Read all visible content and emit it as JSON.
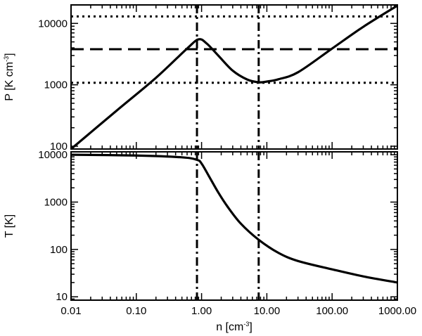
{
  "chart_data": [
    {
      "type": "line",
      "panel": "top",
      "xscale": "log",
      "yscale": "log",
      "xlim": [
        0.01,
        1000
      ],
      "ylim": [
        90,
        20000
      ],
      "yticks": [
        100,
        1000,
        10000
      ],
      "ytick_labels": [
        "100",
        "1000",
        "10000"
      ],
      "ylabel": {
        "prefix": "P [K cm",
        "sup": "-3",
        "suffix": "]"
      },
      "series": [
        {
          "style": "solid",
          "x": [
            0.01,
            0.05,
            0.2,
            0.6,
            0.9,
            1.2,
            1.8,
            3.0,
            5.0,
            7.5,
            10,
            15,
            30,
            100,
            300,
            1000
          ],
          "y": [
            90,
            380,
            1300,
            3900,
            5500,
            4700,
            3000,
            1700,
            1220,
            1100,
            1130,
            1230,
            1600,
            3900,
            8800,
            19500
          ]
        }
      ],
      "hlines": [
        {
          "y": 13000,
          "style": "dotted"
        },
        {
          "y": 3800,
          "style": "dashed"
        },
        {
          "y": 1080,
          "style": "dotted"
        }
      ],
      "vlines": [
        {
          "x": 0.85,
          "style": "dashdot"
        },
        {
          "x": 7.5,
          "style": "dashdot"
        }
      ]
    },
    {
      "type": "line",
      "panel": "bottom",
      "xscale": "log",
      "yscale": "log",
      "xlim": [
        0.01,
        1000
      ],
      "ylim": [
        8.5,
        11500
      ],
      "xticks": [
        0.01,
        0.1,
        1,
        10,
        100,
        1000
      ],
      "xtick_labels": [
        "0.01",
        "0.10",
        "1.00",
        "10.00",
        "100.00",
        "1000.00"
      ],
      "yticks": [
        10,
        100,
        1000,
        10000
      ],
      "ytick_labels": [
        "10",
        "100",
        "1000",
        "10000"
      ],
      "xlabel": {
        "prefix": "n [cm",
        "sup": "-3",
        "suffix": "]"
      },
      "ylabel": {
        "prefix": "T [K]",
        "sup": "",
        "suffix": ""
      },
      "series": [
        {
          "style": "solid",
          "x": [
            0.01,
            0.1,
            0.5,
            0.85,
            1.0,
            1.3,
            1.8,
            2.5,
            4.0,
            7.5,
            15,
            30,
            100,
            300,
            1000
          ],
          "y": [
            10000,
            9600,
            8800,
            7800,
            6500,
            3500,
            1600,
            800,
            350,
            160,
            85,
            57,
            38,
            27,
            20
          ]
        }
      ],
      "vlines": [
        {
          "x": 0.85,
          "style": "dashdot"
        },
        {
          "x": 7.5,
          "style": "dashdot"
        }
      ]
    }
  ]
}
